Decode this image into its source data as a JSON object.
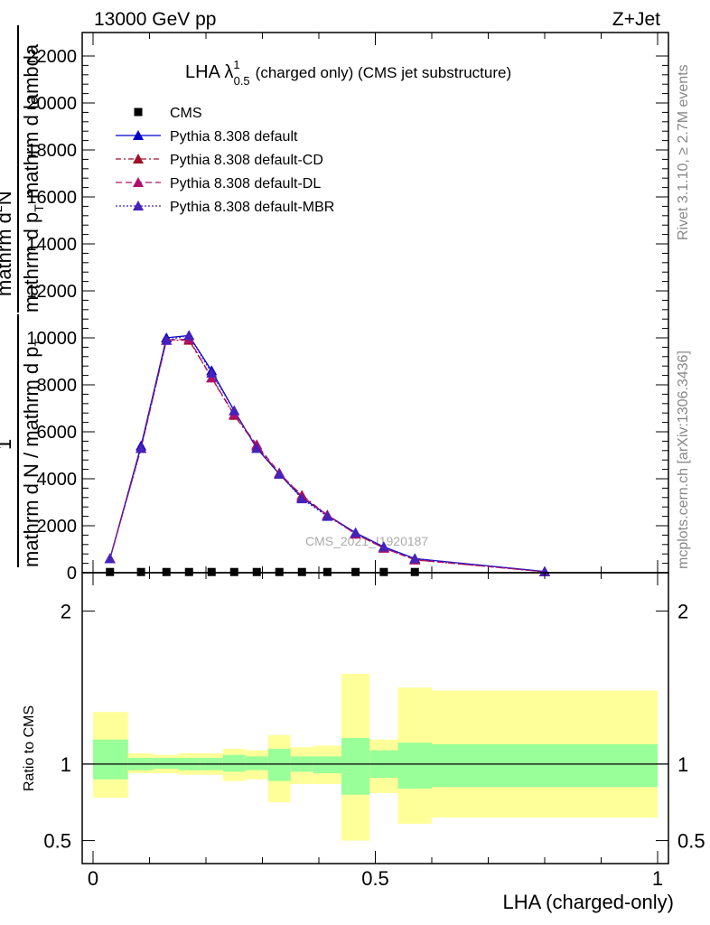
{
  "header": {
    "left_label": "13000 GeV pp",
    "right_label": "Z+Jet"
  },
  "side_labels": {
    "rivet": "Rivet 3.1.10, ≥ 2.7M events",
    "mcplots": "mcplots.cern.ch [arXiv:1306.3436]"
  },
  "title": {
    "main": "LHA λ",
    "sup": "1",
    "sub": "0.5",
    "rest": "(charged only) (CMS jet substructure)"
  },
  "watermark": "CMS_2021_I1920187",
  "ylabel_main": {
    "prefix_num": "1",
    "prefix_den": "mathrm d N / mathrm d p",
    "prefix_den_sub": "T",
    "num": "mathrm d",
    "num_sup": "2",
    "num_rest": "N",
    "den": "mathrm d p",
    "den_sub": "T",
    "den_rest": " mathrm d lambda"
  },
  "colors": {
    "default": "#0000cc",
    "cd": "#a0102a",
    "dl": "#b0106a",
    "mbr": "#4422bb",
    "band_inner": "#99ff99",
    "band_outer": "#ffff99",
    "data": "#000000"
  },
  "chart_data": [
    {
      "type": "line",
      "panel": "main",
      "xlabel": "",
      "ylabel": "",
      "xlim": [
        0,
        1
      ],
      "ylim": [
        0,
        23000
      ],
      "y_ticks": [
        0,
        2000,
        4000,
        6000,
        8000,
        10000,
        12000,
        14000,
        16000,
        18000,
        20000,
        22000
      ],
      "y_tick_labels": [
        "0",
        "2000",
        "4000",
        "6000",
        "8000",
        "10000",
        "12000",
        "14000",
        "16000",
        "18000",
        "20000",
        "22000"
      ],
      "x": [
        0.03,
        0.085,
        0.13,
        0.17,
        0.21,
        0.25,
        0.29,
        0.33,
        0.37,
        0.415,
        0.465,
        0.515,
        0.57,
        0.8
      ],
      "legend": [
        {
          "key": "data",
          "label": "CMS"
        },
        {
          "key": "default",
          "label": "Pythia 8.308 default"
        },
        {
          "key": "cd",
          "label": "Pythia 8.308 default-CD"
        },
        {
          "key": "dl",
          "label": "Pythia 8.308 default-DL"
        },
        {
          "key": "mbr",
          "label": "Pythia 8.308 default-MBR"
        }
      ],
      "series": [
        {
          "name": "CMS",
          "key": "data",
          "values": [
            30,
            30,
            30,
            30,
            30,
            30,
            30,
            30,
            30,
            30,
            30,
            30,
            30,
            null
          ]
        },
        {
          "name": "Pythia 8.308 default",
          "key": "default",
          "values": [
            600,
            5400,
            10000,
            10100,
            8600,
            6900,
            5300,
            4200,
            3200,
            2450,
            1700,
            1100,
            600,
            50
          ]
        },
        {
          "name": "Pythia 8.308 default-CD",
          "key": "cd",
          "values": [
            600,
            5300,
            9900,
            9900,
            8300,
            6700,
            5400,
            4200,
            3300,
            2450,
            1650,
            1050,
            550,
            40
          ]
        },
        {
          "name": "Pythia 8.308 default-DL",
          "key": "dl",
          "values": [
            600,
            5300,
            9900,
            9950,
            8300,
            6750,
            5450,
            4250,
            3250,
            2450,
            1650,
            1050,
            550,
            40
          ]
        },
        {
          "name": "Pythia 8.308 default-MBR",
          "key": "mbr",
          "values": [
            600,
            5300,
            9900,
            10100,
            8500,
            6900,
            5300,
            4200,
            3150,
            2400,
            1700,
            1100,
            600,
            50
          ]
        }
      ]
    },
    {
      "type": "area",
      "panel": "ratio",
      "xlabel": "LHA (charged-only)",
      "ylabel": "Ratio to CMS",
      "xlim": [
        0,
        1
      ],
      "ylim": [
        0.35,
        2.25
      ],
      "x_ticks": [
        0,
        0.5,
        1
      ],
      "x_tick_labels": [
        "0",
        "0.5",
        "1"
      ],
      "y_ticks": [
        0.5,
        1,
        2
      ],
      "y_tick_labels": [
        "0.5",
        "1",
        "2"
      ],
      "reference_line": 1,
      "bins": [
        {
          "lo": 0.0,
          "hi": 0.062,
          "inner": [
            0.9,
            1.16
          ],
          "outer": [
            0.78,
            1.34
          ]
        },
        {
          "lo": 0.062,
          "hi": 0.107,
          "inner": [
            0.96,
            1.04
          ],
          "outer": [
            0.94,
            1.07
          ]
        },
        {
          "lo": 0.107,
          "hi": 0.152,
          "inner": [
            0.97,
            1.04
          ],
          "outer": [
            0.94,
            1.06
          ]
        },
        {
          "lo": 0.152,
          "hi": 0.19,
          "inner": [
            0.96,
            1.04
          ],
          "outer": [
            0.93,
            1.07
          ]
        },
        {
          "lo": 0.19,
          "hi": 0.23,
          "inner": [
            0.96,
            1.04
          ],
          "outer": [
            0.93,
            1.07
          ]
        },
        {
          "lo": 0.23,
          "hi": 0.27,
          "inner": [
            0.95,
            1.06
          ],
          "outer": [
            0.89,
            1.1
          ]
        },
        {
          "lo": 0.27,
          "hi": 0.31,
          "inner": [
            0.96,
            1.05
          ],
          "outer": [
            0.9,
            1.09
          ]
        },
        {
          "lo": 0.31,
          "hi": 0.35,
          "inner": [
            0.89,
            1.1
          ],
          "outer": [
            0.75,
            1.19
          ]
        },
        {
          "lo": 0.35,
          "hi": 0.39,
          "inner": [
            0.95,
            1.05
          ],
          "outer": [
            0.87,
            1.11
          ]
        },
        {
          "lo": 0.39,
          "hi": 0.44,
          "inner": [
            0.94,
            1.05
          ],
          "outer": [
            0.87,
            1.12
          ]
        },
        {
          "lo": 0.44,
          "hi": 0.49,
          "inner": [
            0.8,
            1.17
          ],
          "outer": [
            0.5,
            1.59
          ]
        },
        {
          "lo": 0.49,
          "hi": 0.54,
          "inner": [
            0.91,
            1.09
          ],
          "outer": [
            0.81,
            1.16
          ]
        },
        {
          "lo": 0.54,
          "hi": 0.6,
          "inner": [
            0.84,
            1.14
          ],
          "outer": [
            0.61,
            1.5
          ]
        },
        {
          "lo": 0.6,
          "hi": 1.0,
          "inner": [
            0.85,
            1.13
          ],
          "outer": [
            0.65,
            1.48
          ]
        }
      ]
    }
  ]
}
